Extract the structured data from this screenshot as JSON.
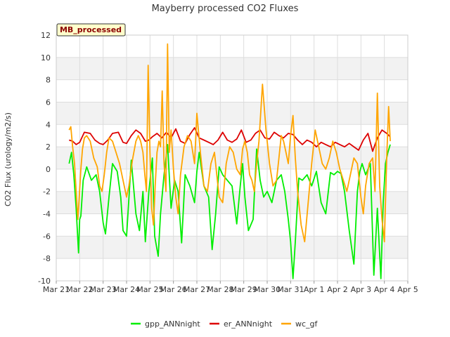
{
  "chart_data": {
    "type": "line",
    "title": "Mayberry processed CO2 Fluxes",
    "xlabel": "",
    "ylabel": "CO2 Flux (urology/m2/s)",
    "annotation": "MB_processed",
    "ylim": [
      -10,
      12
    ],
    "yticks": [
      -10,
      -8,
      -6,
      -4,
      -2,
      0,
      2,
      4,
      6,
      8,
      10,
      12
    ],
    "xlim": [
      0,
      15
    ],
    "xticks": [
      0,
      1,
      2,
      3,
      4,
      5,
      6,
      7,
      8,
      9,
      10,
      11,
      12,
      13,
      14,
      15
    ],
    "xtick_labels": [
      "Mar 21",
      "Mar 22",
      "Mar 23",
      "Mar 24",
      "Mar 25",
      "Mar 26",
      "Mar 27",
      "Mar 28",
      "Mar 29",
      "Mar 30",
      "Mar 31",
      "Apr 1",
      "Apr 2",
      "Apr 3",
      "Apr 4",
      "Apr 5"
    ],
    "x_units": "days since Mar 21",
    "grid": true,
    "legend_position": "bottom",
    "series": [
      {
        "name": "gpp_ANNnight",
        "color": "#00ee00",
        "x": [
          0.55,
          0.65,
          0.75,
          0.85,
          0.95,
          1.0,
          1.05,
          1.15,
          1.3,
          1.5,
          1.7,
          1.85,
          2.0,
          2.1,
          2.25,
          2.4,
          2.6,
          2.75,
          2.85,
          3.0,
          3.2,
          3.4,
          3.55,
          3.7,
          3.8,
          3.95,
          4.1,
          4.2,
          4.35,
          4.45,
          4.6,
          4.75,
          4.9,
          5.05,
          5.2,
          5.35,
          5.5,
          5.7,
          5.9,
          6.0,
          6.1,
          6.3,
          6.5,
          6.65,
          6.8,
          6.95,
          7.1,
          7.3,
          7.5,
          7.7,
          7.85,
          7.95,
          8.05,
          8.2,
          8.4,
          8.55,
          8.7,
          8.85,
          9.0,
          9.2,
          9.4,
          9.6,
          9.75,
          9.9,
          10.0,
          10.1,
          10.2,
          10.35,
          10.5,
          10.7,
          10.9,
          11.1,
          11.3,
          11.5,
          11.7,
          11.85,
          12.0,
          12.15,
          12.3,
          12.5,
          12.7,
          12.85,
          12.95,
          13.05,
          13.2,
          13.4,
          13.55,
          13.7,
          13.85,
          13.95,
          14.05,
          14.15,
          14.25
        ],
        "values": [
          0.5,
          1.5,
          -0.5,
          -3.5,
          -7.5,
          -4.5,
          -4.2,
          -1.0,
          0.2,
          -1.0,
          -0.5,
          -2.0,
          -4.8,
          -5.8,
          -2.5,
          0.5,
          -0.2,
          -2.5,
          -5.5,
          -6.0,
          0.8,
          -4.0,
          -5.5,
          -2.0,
          -6.5,
          -2.0,
          1.0,
          -6.0,
          -7.8,
          -4.0,
          -0.5,
          2.2,
          -3.5,
          -1.0,
          -2.0,
          -6.6,
          -0.5,
          -1.5,
          -3.0,
          -0.2,
          1.5,
          -1.5,
          -2.5,
          -7.2,
          -4.0,
          0.2,
          -0.5,
          -1.0,
          -1.5,
          -4.9,
          -1.5,
          0.5,
          -2.5,
          -5.5,
          -4.5,
          1.8,
          -1.0,
          -2.5,
          -2.0,
          -3.0,
          -1.0,
          -0.5,
          -2.0,
          -4.5,
          -6.5,
          -9.8,
          -6.5,
          -0.8,
          -1.0,
          -0.5,
          -1.5,
          -0.2,
          -3.0,
          -4.0,
          -0.3,
          -0.5,
          -0.2,
          -0.4,
          -2.0,
          -5.5,
          -8.5,
          -2.0,
          -0.2,
          0.5,
          -0.5,
          0.5,
          -9.5,
          -3.5,
          -9.8,
          -3.0,
          0.5,
          1.5,
          2.2
        ]
      },
      {
        "name": "er_ANNnight",
        "color": "#dd0000",
        "x": [
          0.55,
          0.7,
          0.85,
          1.0,
          1.2,
          1.45,
          1.65,
          1.85,
          2.0,
          2.2,
          2.4,
          2.65,
          2.85,
          3.0,
          3.2,
          3.4,
          3.6,
          3.8,
          3.95,
          4.1,
          4.3,
          4.5,
          4.7,
          4.9,
          5.1,
          5.3,
          5.5,
          5.7,
          5.9,
          6.1,
          6.3,
          6.5,
          6.7,
          6.9,
          7.1,
          7.3,
          7.5,
          7.7,
          7.9,
          8.1,
          8.3,
          8.5,
          8.7,
          8.9,
          9.1,
          9.3,
          9.5,
          9.7,
          9.9,
          10.1,
          10.3,
          10.5,
          10.7,
          10.9,
          11.1,
          11.3,
          11.5,
          11.7,
          11.9,
          12.1,
          12.3,
          12.5,
          12.7,
          12.9,
          13.1,
          13.3,
          13.5,
          13.7,
          13.9,
          14.1,
          14.25
        ],
        "values": [
          2.6,
          2.5,
          2.2,
          2.4,
          3.3,
          3.2,
          2.6,
          2.3,
          2.2,
          2.6,
          3.2,
          3.3,
          2.4,
          2.3,
          3.0,
          3.5,
          3.2,
          2.5,
          2.6,
          2.9,
          3.2,
          2.8,
          3.3,
          2.8,
          3.6,
          2.5,
          2.3,
          3.1,
          3.7,
          2.8,
          2.6,
          2.4,
          2.2,
          2.6,
          3.3,
          2.6,
          2.4,
          2.7,
          3.5,
          2.4,
          2.6,
          3.2,
          3.5,
          2.8,
          2.7,
          3.3,
          3.0,
          2.8,
          3.2,
          3.1,
          2.6,
          2.2,
          2.6,
          2.4,
          2.0,
          2.4,
          2.2,
          2.0,
          2.4,
          2.2,
          2.0,
          2.3,
          2.0,
          1.7,
          2.6,
          3.2,
          1.6,
          2.8,
          3.5,
          3.2,
          2.9
        ]
      },
      {
        "name": "wc_gf",
        "color": "#ffa500",
        "x": [
          0.55,
          0.62,
          0.7,
          0.78,
          0.85,
          0.92,
          0.98,
          1.05,
          1.12,
          1.2,
          1.3,
          1.45,
          1.6,
          1.75,
          1.85,
          1.95,
          2.05,
          2.15,
          2.25,
          2.4,
          2.55,
          2.7,
          2.85,
          3.0,
          3.1,
          3.25,
          3.4,
          3.5,
          3.6,
          3.7,
          3.78,
          3.85,
          3.92,
          4.0,
          4.07,
          4.15,
          4.22,
          4.3,
          4.38,
          4.45,
          4.52,
          4.6,
          4.68,
          4.75,
          4.82,
          4.9,
          5.0,
          5.1,
          5.2,
          5.3,
          5.45,
          5.6,
          5.75,
          5.9,
          6.0,
          6.15,
          6.3,
          6.45,
          6.6,
          6.75,
          6.85,
          6.95,
          7.1,
          7.25,
          7.4,
          7.55,
          7.7,
          7.85,
          7.95,
          8.05,
          8.15,
          8.25,
          8.35,
          8.45,
          8.55,
          8.65,
          8.8,
          8.95,
          9.1,
          9.25,
          9.4,
          9.5,
          9.6,
          9.7,
          9.8,
          9.9,
          10.0,
          10.1,
          10.2,
          10.3,
          10.45,
          10.6,
          10.75,
          10.9,
          11.05,
          11.2,
          11.35,
          11.5,
          11.65,
          11.8,
          11.95,
          12.1,
          12.25,
          12.4,
          12.55,
          12.7,
          12.85,
          13.0,
          13.1,
          13.2,
          13.35,
          13.5,
          13.6,
          13.7,
          13.8,
          13.9,
          14.0,
          14.1,
          14.18,
          14.25
        ],
        "values": [
          3.5,
          3.8,
          2.0,
          0.5,
          -2.0,
          -4.5,
          -2.5,
          0.0,
          1.8,
          2.8,
          3.0,
          2.5,
          1.0,
          0.2,
          -1.5,
          -2.0,
          -0.5,
          1.5,
          2.8,
          2.5,
          1.5,
          0.5,
          -1.0,
          -2.5,
          -1.5,
          0.8,
          2.5,
          3.0,
          2.5,
          1.5,
          -0.5,
          -2.0,
          9.3,
          1.5,
          -3.5,
          -5.0,
          -1.5,
          1.5,
          2.5,
          2.0,
          7.0,
          0.5,
          -2.0,
          11.2,
          1.5,
          3.5,
          0.0,
          -2.5,
          -4.0,
          -0.5,
          2.0,
          3.0,
          2.5,
          0.5,
          5.0,
          1.5,
          -1.5,
          -2.0,
          0.5,
          1.5,
          -0.5,
          -2.5,
          -3.0,
          0.5,
          2.0,
          1.5,
          0.0,
          -0.5,
          1.8,
          2.5,
          1.5,
          -0.5,
          -1.0,
          -2.0,
          0.5,
          2.5,
          7.6,
          3.5,
          0.5,
          -1.5,
          -1.0,
          1.0,
          3.0,
          2.5,
          1.5,
          0.5,
          3.0,
          4.8,
          1.0,
          -2.0,
          -5.0,
          -6.5,
          -3.0,
          0.5,
          3.5,
          2.0,
          0.5,
          0.0,
          1.0,
          2.5,
          1.5,
          0.0,
          -1.0,
          -2.0,
          -0.5,
          1.0,
          0.5,
          -2.5,
          -4.0,
          -1.5,
          0.5,
          1.0,
          -2.0,
          6.8,
          -1.5,
          -4.5,
          -6.5,
          1.0,
          5.6,
          2.5
        ]
      }
    ]
  }
}
